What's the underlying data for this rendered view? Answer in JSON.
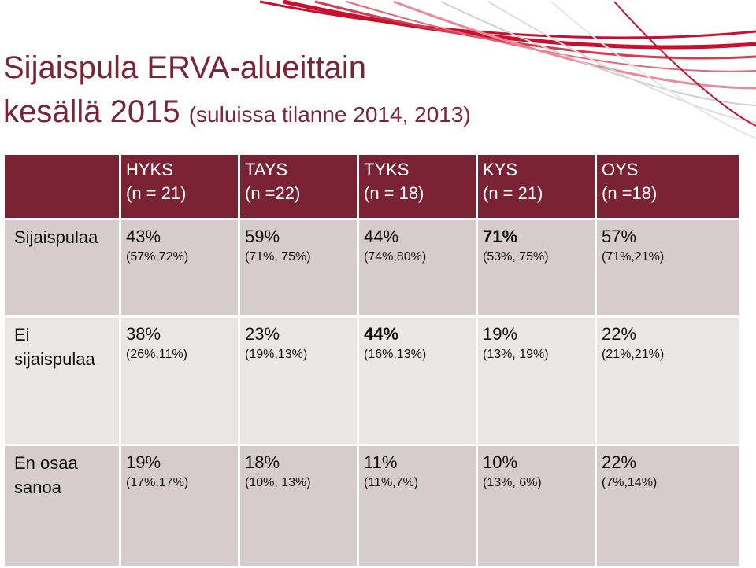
{
  "title": {
    "line1": "Sijaispula ERVA-alueittain",
    "line2_main": "kesällä 2015",
    "line2_sub": "(suluissa tilanne 2014, 2013)"
  },
  "colors": {
    "header": "#7b2335",
    "title": "#7a2436",
    "row_dark": "#d6cccd",
    "row_light": "#ebe6e6"
  },
  "columns": [
    {
      "name": "HYKS",
      "n": "(n = 21)"
    },
    {
      "name": "TAYS",
      "n": "(n =22)"
    },
    {
      "name": "TYKS",
      "n": "(n = 18)"
    },
    {
      "name": "KYS",
      "n": "(n = 21)"
    },
    {
      "name": "OYS",
      "n": "(n =18)"
    }
  ],
  "rows": [
    {
      "label": "Sijaispulaa",
      "cells": [
        {
          "pct": "43%",
          "prev": "(57%,72%)",
          "bold": false
        },
        {
          "pct": "59%",
          "prev": "(71%, 75%)",
          "bold": false
        },
        {
          "pct": "44%",
          "prev": "(74%,80%)",
          "bold": false
        },
        {
          "pct": "71%",
          "prev": "(53%, 75%)",
          "bold": true
        },
        {
          "pct": "57%",
          "prev": "(71%,21%)",
          "bold": false
        }
      ]
    },
    {
      "label_line1": "Ei",
      "label_line2": "sijaispulaa",
      "cells": [
        {
          "pct": "38%",
          "prev": "(26%,11%)",
          "bold": false
        },
        {
          "pct": "23%",
          "prev": "(19%,13%)",
          "bold": false
        },
        {
          "pct": "44%",
          "prev": "(16%,13%)",
          "bold": true
        },
        {
          "pct": "19%",
          "prev": "(13%, 19%)",
          "bold": false
        },
        {
          "pct": "22%",
          "prev": "(21%,21%)",
          "bold": false
        }
      ]
    },
    {
      "label_line1": "En osaa",
      "label_line2": "sanoa",
      "cells": [
        {
          "pct": "19%",
          "prev": "(17%,17%)",
          "bold": false
        },
        {
          "pct": "18%",
          "prev": "(10%, 13%)",
          "bold": false
        },
        {
          "pct": "11%",
          "prev": "(11%,7%)",
          "bold": false
        },
        {
          "pct": "10%",
          "prev": "(13%, 6%)",
          "bold": false
        },
        {
          "pct": "22%",
          "prev": "(7%,14%)",
          "bold": false
        }
      ]
    }
  ]
}
